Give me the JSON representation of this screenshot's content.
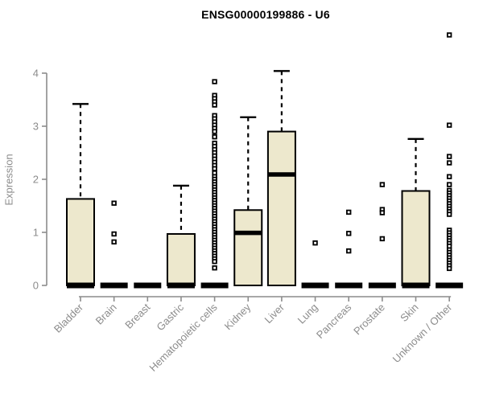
{
  "chart_data": {
    "type": "boxplot",
    "title": "ENSG00000199886 - U6",
    "ylabel": "Expression",
    "xlabel": "",
    "ylim": [
      0,
      4.8
    ],
    "yticks": [
      0,
      1,
      2,
      3,
      4
    ],
    "grid": false,
    "legend": null,
    "categories": [
      "Bladder",
      "Brain",
      "Breast",
      "Gastric",
      "Hematopoietic cells",
      "Kidney",
      "Liver",
      "Lung",
      "Pancreas",
      "Prostate",
      "Skin",
      "Unknown / Other"
    ],
    "boxes": [
      {
        "category": "Bladder",
        "q1": 0,
        "median": 0,
        "q3": 1.63,
        "whisker_low": 0,
        "whisker_high": 3.42,
        "outliers": []
      },
      {
        "category": "Brain",
        "q1": 0,
        "median": 0,
        "q3": 0,
        "whisker_low": 0,
        "whisker_high": 0,
        "outliers": [
          1.55,
          0.97,
          0.82
        ]
      },
      {
        "category": "Breast",
        "q1": 0,
        "median": 0,
        "q3": 0,
        "whisker_low": 0,
        "whisker_high": 0,
        "outliers": []
      },
      {
        "category": "Gastric",
        "q1": 0,
        "median": 0,
        "q3": 0.97,
        "whisker_low": 0,
        "whisker_high": 1.88,
        "outliers": []
      },
      {
        "category": "Hematopoietic cells",
        "q1": 0,
        "median": 0,
        "q3": 0,
        "whisker_low": 0,
        "whisker_high": 0,
        "outliers": [
          3.84,
          3.58,
          3.52,
          3.46,
          3.4,
          3.2,
          3.14,
          3.08,
          3.02,
          2.96,
          2.9,
          2.8,
          2.68,
          2.62,
          2.56,
          2.5,
          2.44,
          2.38,
          2.32,
          2.26,
          2.2,
          2.12,
          2.05,
          2.0,
          1.95,
          1.9,
          1.85,
          1.8,
          1.75,
          1.7,
          1.65,
          1.6,
          1.55,
          1.5,
          1.45,
          1.4,
          1.35,
          1.3,
          1.25,
          1.2,
          1.15,
          1.1,
          1.05,
          1.0,
          0.95,
          0.9,
          0.85,
          0.8,
          0.75,
          0.7,
          0.65,
          0.6,
          0.55,
          0.5,
          0.45,
          0.33
        ]
      },
      {
        "category": "Kidney",
        "q1": 0,
        "median": 0.99,
        "q3": 1.42,
        "whisker_low": 0,
        "whisker_high": 3.17,
        "outliers": []
      },
      {
        "category": "Liver",
        "q1": 0,
        "median": 2.09,
        "q3": 2.9,
        "whisker_low": 0,
        "whisker_high": 4.04,
        "outliers": []
      },
      {
        "category": "Lung",
        "q1": 0,
        "median": 0,
        "q3": 0,
        "whisker_low": 0,
        "whisker_high": 0,
        "outliers": [
          0.8
        ]
      },
      {
        "category": "Pancreas",
        "q1": 0,
        "median": 0,
        "q3": 0,
        "whisker_low": 0,
        "whisker_high": 0,
        "outliers": [
          1.38,
          0.98,
          0.65
        ]
      },
      {
        "category": "Prostate",
        "q1": 0,
        "median": 0,
        "q3": 0,
        "whisker_low": 0,
        "whisker_high": 0,
        "outliers": [
          1.9,
          1.43,
          1.37,
          0.88
        ]
      },
      {
        "category": "Skin",
        "q1": 0,
        "median": 0,
        "q3": 1.78,
        "whisker_low": 0,
        "whisker_high": 2.76,
        "outliers": []
      },
      {
        "category": "Unknown / Other",
        "q1": 0,
        "median": 0,
        "q3": 0,
        "whisker_low": 0,
        "whisker_high": 0,
        "outliers": [
          4.72,
          3.02,
          2.43,
          2.31,
          2.05,
          1.9,
          1.79,
          1.74,
          1.69,
          1.64,
          1.59,
          1.54,
          1.49,
          1.44,
          1.39,
          1.34,
          1.04,
          0.99,
          0.94,
          0.89,
          0.84,
          0.79,
          0.74,
          0.67,
          0.62,
          0.57,
          0.52,
          0.47,
          0.42,
          0.37,
          0.32
        ]
      }
    ],
    "colors": {
      "box_fill": "#EDE8CD",
      "box_border": "#000000",
      "median": "#000000",
      "whisker": "#000000",
      "outlier": "#000000",
      "axis": "#8c8c8c",
      "tick_label": "#8c8c8c",
      "title": "#000000",
      "background": "#ffffff"
    }
  }
}
